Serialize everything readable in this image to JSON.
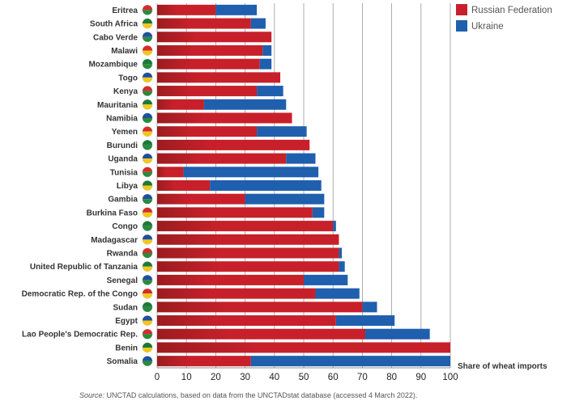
{
  "chart_data": {
    "type": "bar",
    "orientation": "horizontal",
    "stacked": true,
    "categories": [
      "Eritrea",
      "South Africa",
      "Cabo Verde",
      "Malawi",
      "Mozambique",
      "Togo",
      "Kenya",
      "Mauritania",
      "Namibia",
      "Yemen",
      "Burundi",
      "Uganda",
      "Tunisia",
      "Libya",
      "Gambia",
      "Burkina Faso",
      "Congo",
      "Madagascar",
      "Rwanda",
      "United Republic of Tanzania",
      "Senegal",
      "Democratic Rep. of the Congo",
      "Sudan",
      "Egypt",
      "Lao People's Democratic Rep.",
      "Benin",
      "Somalia"
    ],
    "series": [
      {
        "name": "Russian Federation",
        "color": "#c8202a",
        "values": [
          20,
          32,
          39,
          36,
          35,
          42,
          34,
          16,
          46,
          34,
          52,
          44,
          9,
          18,
          30,
          53,
          60,
          62,
          62,
          62,
          50,
          54,
          70,
          61,
          71,
          100,
          32
        ]
      },
      {
        "name": "Ukraine",
        "color": "#1f5fae",
        "values": [
          14,
          5,
          0,
          3,
          4,
          0,
          9,
          28,
          0,
          17,
          0,
          10,
          46,
          38,
          27,
          4,
          1,
          0,
          1,
          2,
          15,
          15,
          5,
          20,
          22,
          0,
          68
        ]
      }
    ],
    "xlim": [
      0,
      100
    ],
    "xticks": [
      0,
      10,
      20,
      30,
      40,
      50,
      60,
      70,
      80,
      90,
      100
    ],
    "xlabel": "Share of wheat imports",
    "grid": true,
    "legend_position": "top-right",
    "source": {
      "prefix": "Source:",
      "text": "UNCTAD calculations, based on data from the UNCTADstat database (accessed 4 March 2022)."
    }
  }
}
